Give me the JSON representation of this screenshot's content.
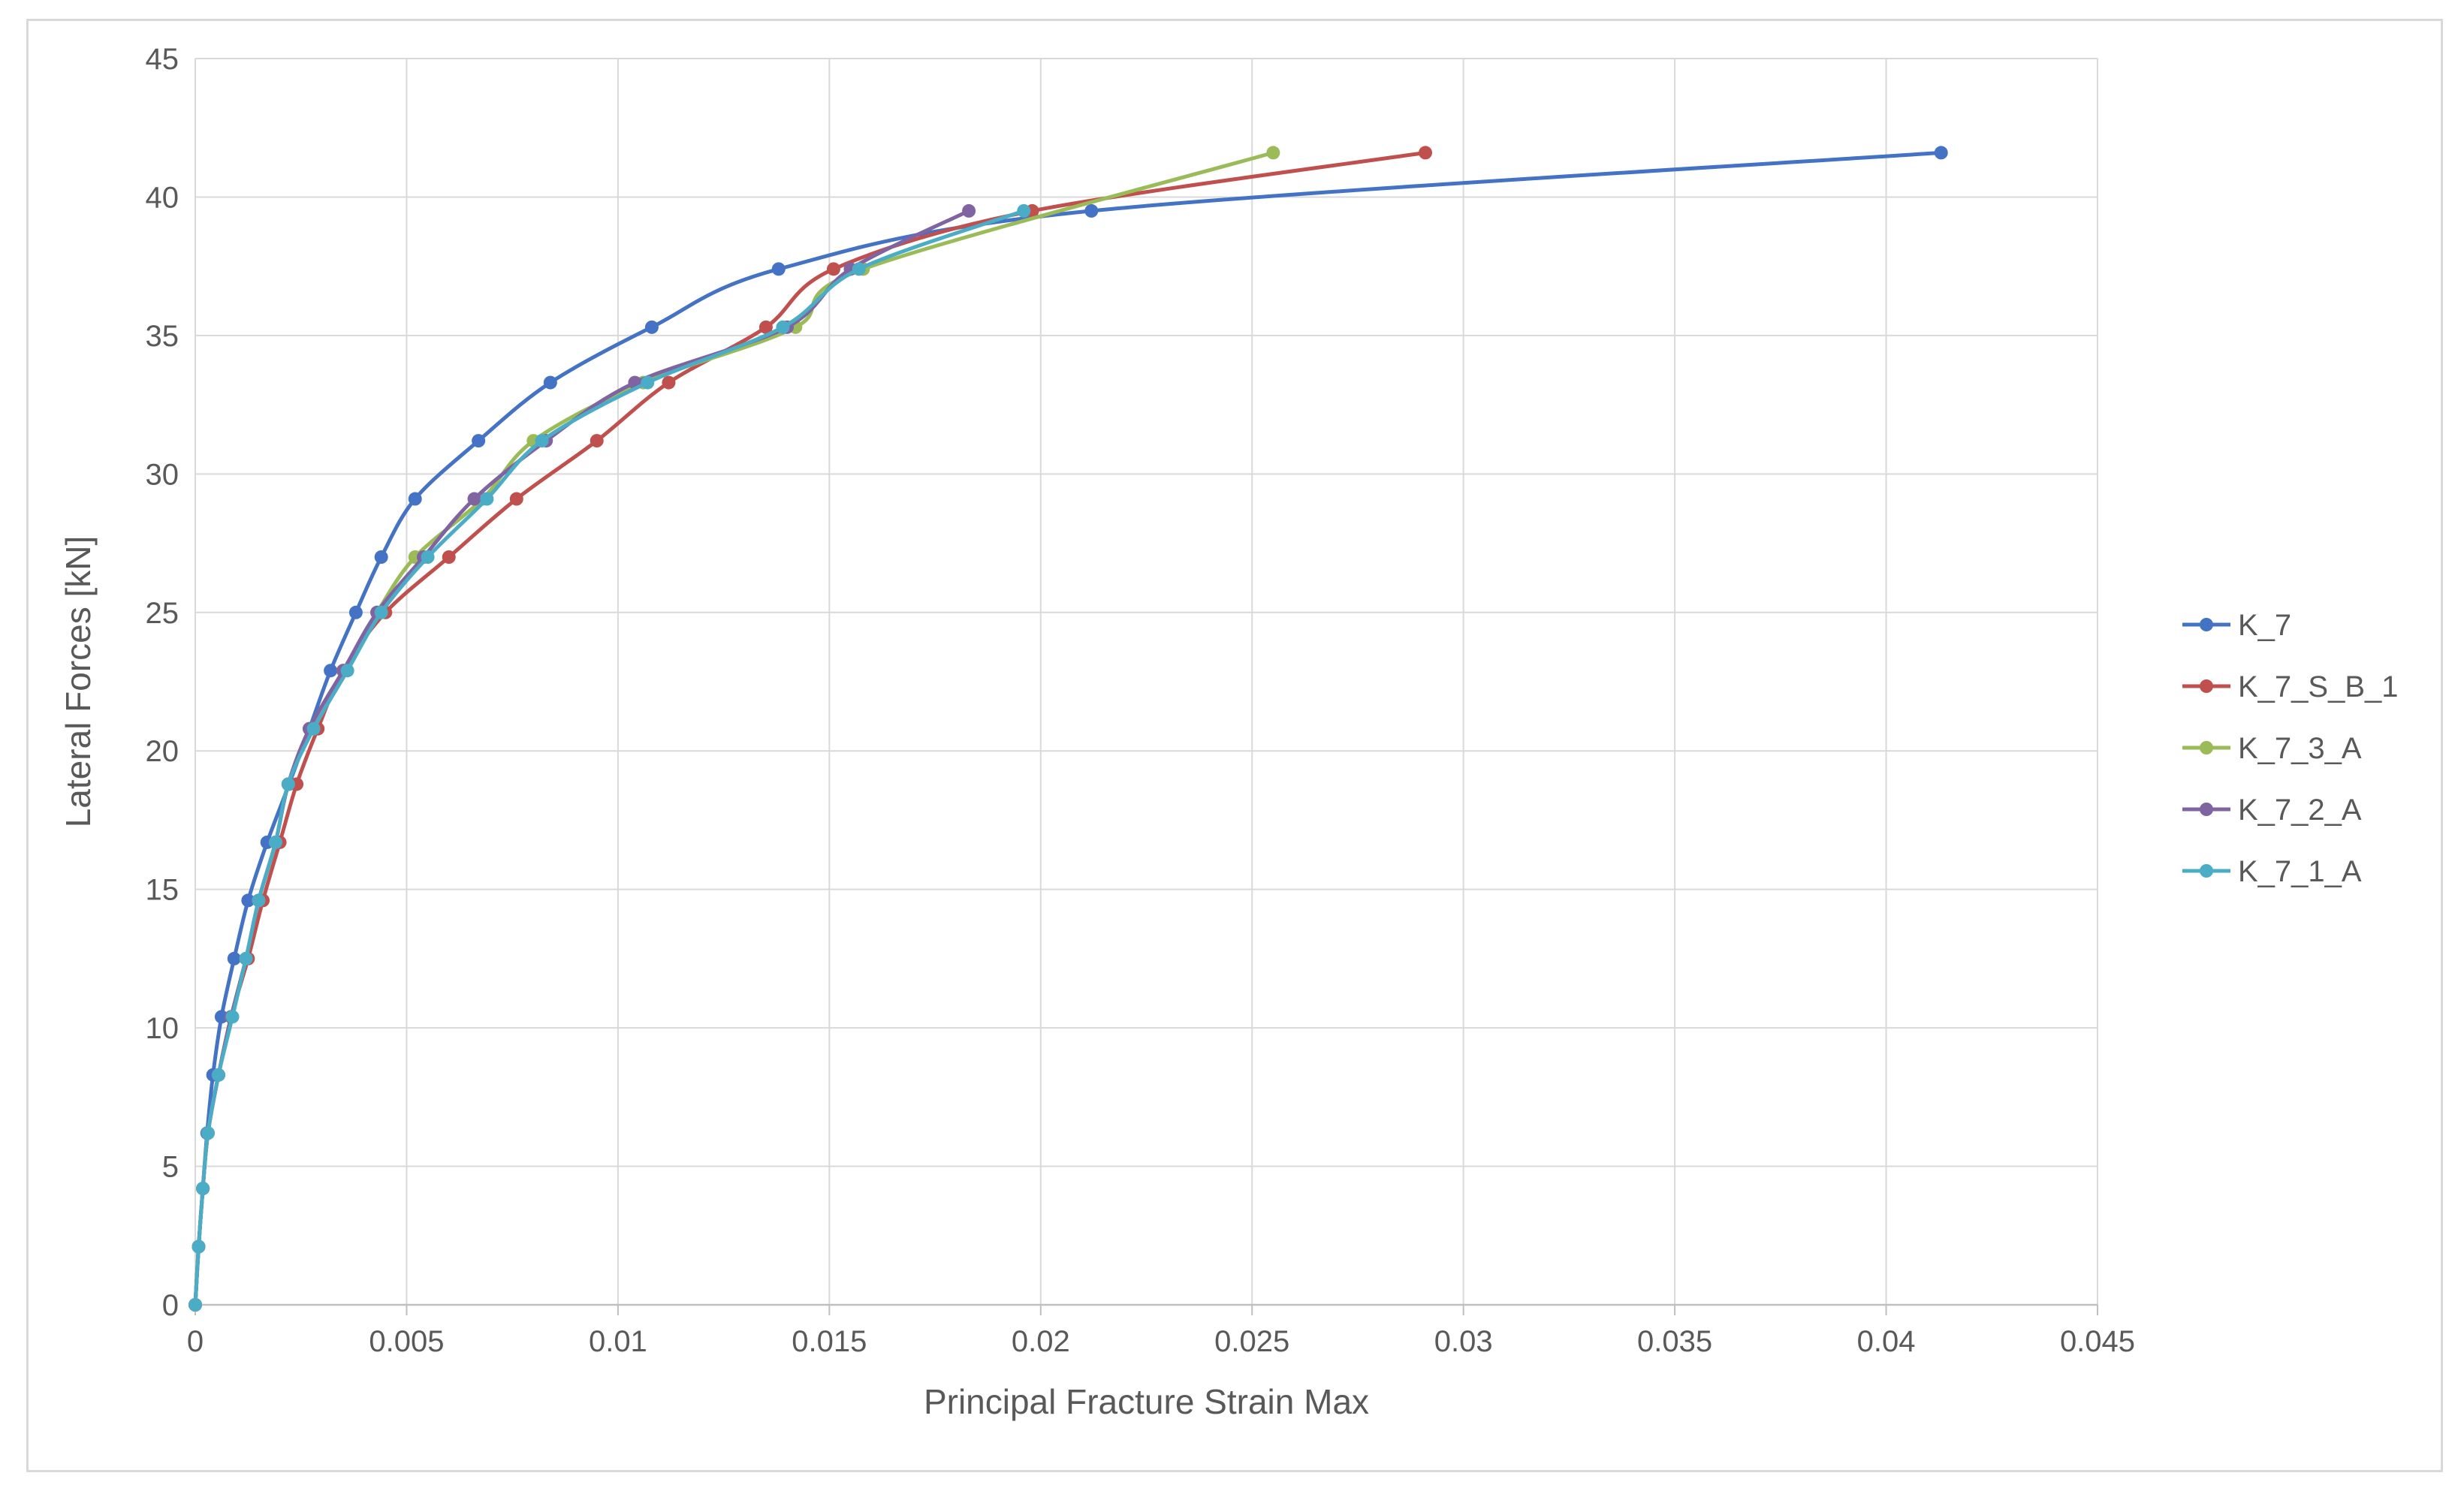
{
  "chart_data": {
    "type": "line",
    "title": "",
    "xlabel": "Principal Fracture Strain Max",
    "ylabel": "Lateral Forces [kN]",
    "xlim": [
      0,
      0.045
    ],
    "ylim": [
      0,
      45
    ],
    "xticks": [
      0,
      0.005,
      0.01,
      0.015,
      0.02,
      0.025,
      0.03,
      0.035,
      0.04,
      0.045
    ],
    "xtick_labels": [
      "0",
      "0.005",
      "0.01",
      "0.015",
      "0.02",
      "0.025",
      "0.03",
      "0.035",
      "0.04",
      "0.045"
    ],
    "yticks": [
      0,
      5,
      10,
      15,
      20,
      25,
      30,
      35,
      40,
      45
    ],
    "ytick_labels": [
      "0",
      "5",
      "10",
      "15",
      "20",
      "25",
      "30",
      "35",
      "40",
      "45"
    ],
    "grid": true,
    "legend_position": "right",
    "series": [
      {
        "name": "K_7",
        "color": "#4472c4",
        "x": [
          0,
          8e-05,
          0.00018,
          0.00028,
          0.00042,
          0.00062,
          0.00092,
          0.00125,
          0.0017,
          0.00222,
          0.0027,
          0.0032,
          0.0038,
          0.0044,
          0.0052,
          0.0067,
          0.0084,
          0.0108,
          0.0138,
          0.0212,
          0.0413
        ],
        "y": [
          0,
          2.1,
          4.2,
          6.2,
          8.3,
          10.4,
          12.5,
          14.6,
          16.7,
          18.8,
          20.8,
          22.9,
          25.0,
          27.0,
          29.1,
          31.2,
          33.3,
          35.3,
          37.4,
          39.5,
          41.6
        ]
      },
      {
        "name": "K_7_S_B_1",
        "color": "#c0504d",
        "x": [
          0,
          8e-05,
          0.00018,
          0.0003,
          0.00055,
          0.00085,
          0.00125,
          0.0016,
          0.002,
          0.0024,
          0.0029,
          0.0035,
          0.0045,
          0.006,
          0.0076,
          0.0095,
          0.0112,
          0.0135,
          0.0151,
          0.0198,
          0.0291
        ],
        "y": [
          0,
          2.1,
          4.2,
          6.2,
          8.3,
          10.4,
          12.5,
          14.6,
          16.7,
          18.8,
          20.8,
          22.9,
          25.0,
          27.0,
          29.1,
          31.2,
          33.3,
          35.3,
          37.4,
          39.5,
          41.6
        ]
      },
      {
        "name": "K_7_3_A",
        "color": "#9bbb59",
        "x": [
          0,
          8e-05,
          0.00018,
          0.0003,
          0.00055,
          0.00085,
          0.0012,
          0.0015,
          0.0019,
          0.0022,
          0.0027,
          0.0035,
          0.0043,
          0.0052,
          0.0068,
          0.008,
          0.0106,
          0.0142,
          0.0158,
          0.0255
        ],
        "y": [
          0,
          2.1,
          4.2,
          6.2,
          8.3,
          10.4,
          12.5,
          14.6,
          16.7,
          18.8,
          20.8,
          22.9,
          25.0,
          27.0,
          29.1,
          31.2,
          33.3,
          35.3,
          37.4,
          41.6
        ]
      },
      {
        "name": "K_7_2_A",
        "color": "#8064a2",
        "x": [
          0,
          8e-05,
          0.00018,
          0.0003,
          0.00055,
          0.00085,
          0.0012,
          0.0015,
          0.0019,
          0.0022,
          0.0027,
          0.0035,
          0.0043,
          0.0054,
          0.0066,
          0.0083,
          0.0104,
          0.014,
          0.0155,
          0.0183
        ],
        "y": [
          0,
          2.1,
          4.2,
          6.2,
          8.3,
          10.4,
          12.5,
          14.6,
          16.7,
          18.8,
          20.8,
          22.9,
          25.0,
          27.0,
          29.1,
          31.2,
          33.3,
          35.3,
          37.4,
          39.5
        ]
      },
      {
        "name": "K_7_1_A",
        "color": "#4bacc6",
        "x": [
          0,
          8e-05,
          0.00018,
          0.0003,
          0.00055,
          0.00088,
          0.0012,
          0.0015,
          0.0019,
          0.0022,
          0.0028,
          0.0036,
          0.0044,
          0.0055,
          0.0069,
          0.0082,
          0.0107,
          0.0139,
          0.0157,
          0.0196
        ],
        "y": [
          0,
          2.1,
          4.2,
          6.2,
          8.3,
          10.4,
          12.5,
          14.6,
          16.7,
          18.8,
          20.8,
          22.9,
          25.0,
          27.0,
          29.1,
          31.2,
          33.3,
          35.3,
          37.4,
          39.5
        ]
      }
    ]
  }
}
